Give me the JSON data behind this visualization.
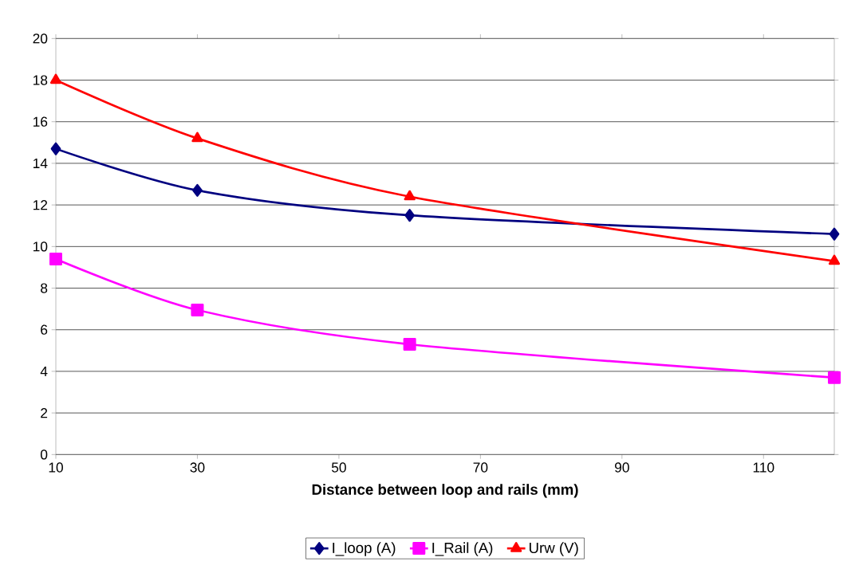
{
  "chart_data": {
    "type": "line",
    "xlabel": "Distance between loop and rails (mm)",
    "x": [
      10,
      30,
      60,
      120
    ],
    "series": [
      {
        "name": "I_loop (A)",
        "color": "#000080",
        "marker": "diamond",
        "values": [
          14.7,
          12.7,
          11.5,
          10.6
        ]
      },
      {
        "name": "I_Rail (A)",
        "color": "#ff00ff",
        "marker": "square",
        "values": [
          9.4,
          6.95,
          5.3,
          3.7
        ]
      },
      {
        "name": "Urw (V)",
        "color": "#ff0000",
        "marker": "triangle",
        "values": [
          18,
          15.2,
          12.4,
          9.3
        ]
      }
    ],
    "xlim": [
      10,
      120
    ],
    "xticks": [
      10,
      30,
      50,
      70,
      90,
      110
    ],
    "ylim": [
      0,
      20
    ],
    "yticks": [
      0,
      2,
      4,
      6,
      8,
      10,
      12,
      14,
      16,
      18,
      20
    ],
    "grid": "y",
    "legend": "bottom",
    "line_style": "solid"
  }
}
